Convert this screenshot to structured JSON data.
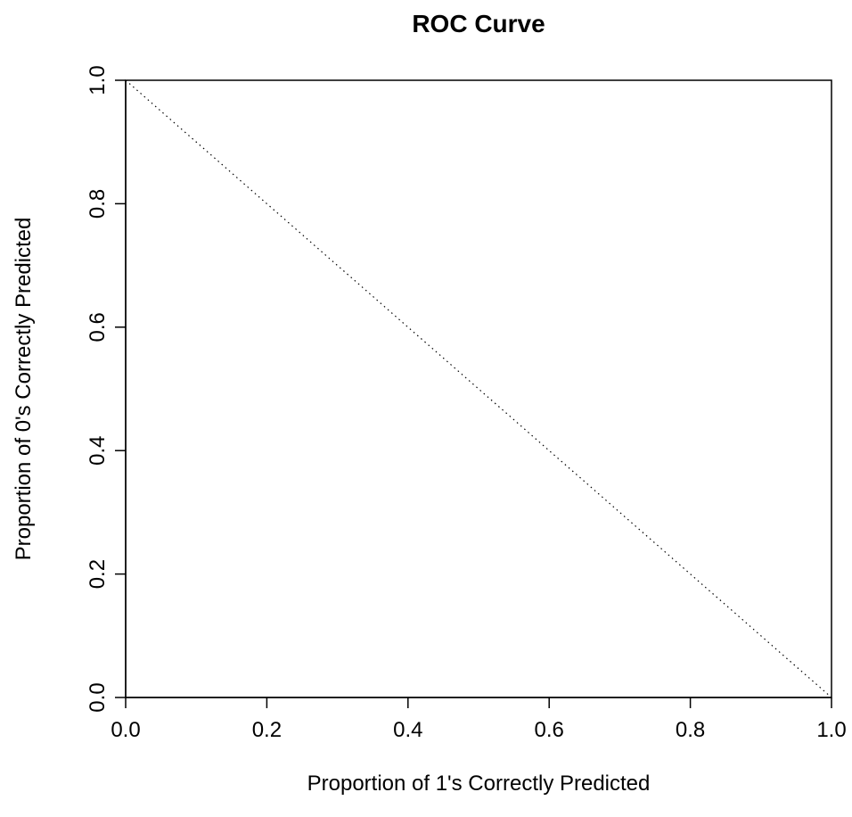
{
  "chart_data": {
    "type": "line",
    "title": "ROC Curve",
    "xlabel": "Proportion of 1's Correctly Predicted",
    "ylabel": "Proportion of 0's Correctly Predicted",
    "xlim": [
      0,
      1
    ],
    "ylim": [
      0,
      1
    ],
    "x_ticks": [
      "0.0",
      "0.2",
      "0.4",
      "0.6",
      "0.8",
      "1.0"
    ],
    "y_ticks": [
      "0.0",
      "0.2",
      "0.4",
      "0.6",
      "0.8",
      "1.0"
    ],
    "grid": false,
    "legend": "none",
    "series": [
      {
        "x": [
          0,
          1
        ],
        "y": [
          1,
          0
        ],
        "line_style": "dotted",
        "color": "#000000"
      }
    ]
  }
}
